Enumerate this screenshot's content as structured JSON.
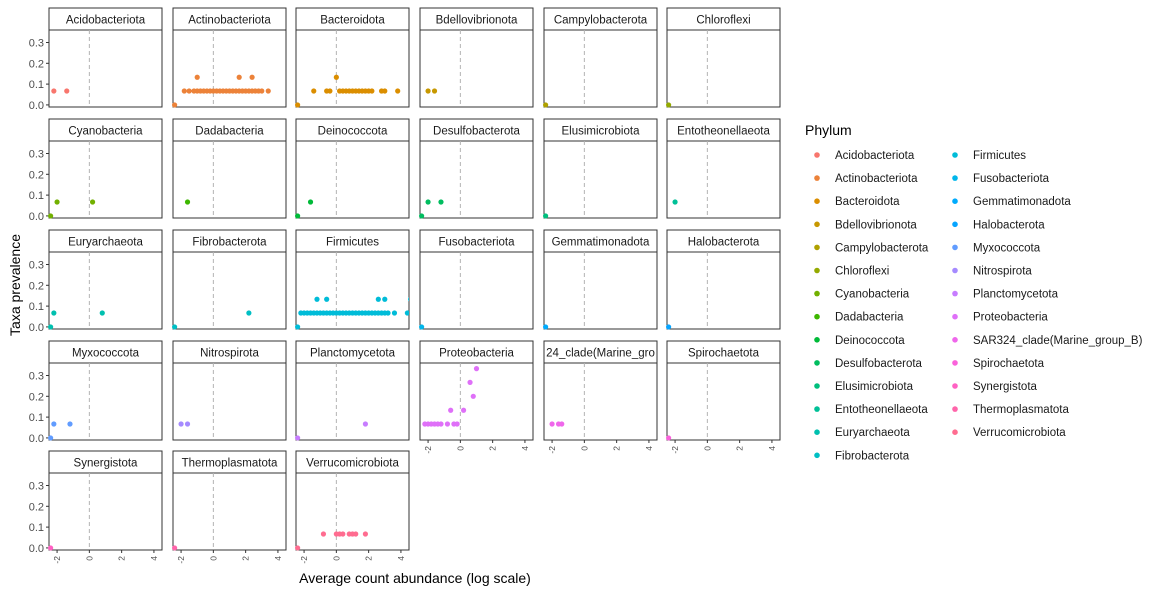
{
  "chart_data": {
    "type": "scatter",
    "xlabel": "Average count abundance (log scale)",
    "ylabel": "Taxa prevalence",
    "xlim": [
      -2.5,
      4.5
    ],
    "ylim": [
      -0.01,
      0.36
    ],
    "x_ticks": [
      -2,
      0,
      2,
      4
    ],
    "y_ticks": [
      0.0,
      0.1,
      0.2,
      0.3
    ],
    "x_tick_labels": [
      "-2",
      "0",
      "2",
      "4"
    ],
    "y_tick_labels": [
      "0.0",
      "0.1",
      "0.2",
      "0.3"
    ],
    "reference_line_x": 0,
    "grid": false,
    "facet_columns": 6,
    "legend": {
      "title": "Phylum",
      "position": "right",
      "columns": 2
    },
    "panel_clip_labels": {
      "SAR324_clade(Marine_group_B)": "24_clade(Marine_gro"
    },
    "series": [
      {
        "name": "Acidobacteriota",
        "color": "#F8766D",
        "x": [
          -2.2,
          -1.4
        ],
        "y": [
          0.067,
          0.067
        ]
      },
      {
        "name": "Actinobacteriota",
        "color": "#EC8239",
        "x": [
          -2.4,
          -1.8,
          -1.5,
          -1.2,
          -1.0,
          -0.8,
          -0.6,
          -0.4,
          -0.2,
          0.0,
          0.2,
          0.4,
          0.6,
          0.8,
          1.0,
          1.2,
          1.4,
          1.6,
          1.8,
          2.0,
          2.2,
          2.4,
          2.6,
          2.8,
          3.0,
          3.4,
          -1.0,
          1.6,
          2.4
        ],
        "y": [
          0.0,
          0.067,
          0.067,
          0.067,
          0.067,
          0.067,
          0.067,
          0.067,
          0.067,
          0.067,
          0.067,
          0.067,
          0.067,
          0.067,
          0.067,
          0.067,
          0.067,
          0.067,
          0.067,
          0.067,
          0.067,
          0.067,
          0.067,
          0.067,
          0.067,
          0.067,
          0.133,
          0.133,
          0.133
        ]
      },
      {
        "name": "Bacteroidota",
        "color": "#DB8E00",
        "x": [
          -2.4,
          -1.4,
          -0.6,
          -0.4,
          0.2,
          0.4,
          0.6,
          0.8,
          1.0,
          1.2,
          1.4,
          1.6,
          1.8,
          2.0,
          2.2,
          2.8,
          3.0,
          3.8,
          0.0
        ],
        "y": [
          0.0,
          0.067,
          0.067,
          0.067,
          0.067,
          0.067,
          0.067,
          0.067,
          0.067,
          0.067,
          0.067,
          0.067,
          0.067,
          0.067,
          0.067,
          0.067,
          0.067,
          0.067,
          0.133
        ]
      },
      {
        "name": "Bdellovibrionota",
        "color": "#C79800",
        "x": [
          -2.0,
          -1.6
        ],
        "y": [
          0.067,
          0.067
        ]
      },
      {
        "name": "Campylobacterota",
        "color": "#AFA100",
        "x": [
          -2.4
        ],
        "y": [
          0.0
        ]
      },
      {
        "name": "Chloroflexi",
        "color": "#94AA00",
        "x": [
          -2.4
        ],
        "y": [
          0.0
        ]
      },
      {
        "name": "Cyanobacteria",
        "color": "#72B000",
        "x": [
          -2.4,
          -2.0,
          0.2
        ],
        "y": [
          0.0,
          0.067,
          0.067
        ]
      },
      {
        "name": "Dadabacteria",
        "color": "#3DB700",
        "x": [
          -1.6
        ],
        "y": [
          0.067
        ]
      },
      {
        "name": "Deinococcota",
        "color": "#00BA38",
        "x": [
          -2.4,
          -1.6
        ],
        "y": [
          0.0,
          0.067
        ]
      },
      {
        "name": "Desulfobacterota",
        "color": "#00BD5F",
        "x": [
          -2.4,
          -2.0,
          -1.2
        ],
        "y": [
          0.0,
          0.067,
          0.067
        ]
      },
      {
        "name": "Elusimicrobiota",
        "color": "#00BF7D",
        "x": [
          -2.4
        ],
        "y": [
          0.0
        ]
      },
      {
        "name": "Entotheonellaeota",
        "color": "#00C097",
        "x": [
          -2.0
        ],
        "y": [
          0.067
        ]
      },
      {
        "name": "Euryarchaeota",
        "color": "#00C0AF",
        "x": [
          -2.4,
          -2.2,
          0.8
        ],
        "y": [
          0.0,
          0.067,
          0.067
        ]
      },
      {
        "name": "Fibrobacterota",
        "color": "#00BFC4",
        "x": [
          -2.4,
          2.2
        ],
        "y": [
          0.0,
          0.067
        ]
      },
      {
        "name": "Firmicutes",
        "color": "#00BCD8",
        "x": [
          -2.4,
          -2.2,
          -2.0,
          -1.8,
          -1.6,
          -1.4,
          -1.2,
          -1.0,
          -0.8,
          -0.6,
          -0.4,
          -0.2,
          0.0,
          0.2,
          0.4,
          0.6,
          0.8,
          1.0,
          1.2,
          1.4,
          1.6,
          1.8,
          2.0,
          2.2,
          2.4,
          2.6,
          2.8,
          3.0,
          3.2,
          3.6,
          4.4,
          -1.2,
          -0.6,
          2.6,
          3.0,
          4.6
        ],
        "y": [
          0.0,
          0.067,
          0.067,
          0.067,
          0.067,
          0.067,
          0.067,
          0.067,
          0.067,
          0.067,
          0.067,
          0.067,
          0.067,
          0.067,
          0.067,
          0.067,
          0.067,
          0.067,
          0.067,
          0.067,
          0.067,
          0.067,
          0.067,
          0.067,
          0.067,
          0.067,
          0.067,
          0.067,
          0.067,
          0.067,
          0.067,
          0.133,
          0.133,
          0.133,
          0.133,
          0.133
        ]
      },
      {
        "name": "Fusobacteriota",
        "color": "#00B6EB",
        "x": [
          -2.4
        ],
        "y": [
          0.0
        ]
      },
      {
        "name": "Gemmatimonadota",
        "color": "#00ABFD",
        "x": [
          -2.4
        ],
        "y": [
          0.0
        ]
      },
      {
        "name": "Halobacterota",
        "color": "#06A4FF",
        "x": [
          -2.4
        ],
        "y": [
          0.0
        ]
      },
      {
        "name": "Myxococcota",
        "color": "#619CFF",
        "x": [
          -2.4,
          -2.2,
          -1.2
        ],
        "y": [
          0.0,
          0.067,
          0.067
        ]
      },
      {
        "name": "Nitrospirota",
        "color": "#A58AFF",
        "x": [
          -2.0,
          -1.6
        ],
        "y": [
          0.067,
          0.067
        ]
      },
      {
        "name": "Planctomycetota",
        "color": "#C77CFF",
        "x": [
          -2.4,
          1.8
        ],
        "y": [
          0.0,
          0.067
        ]
      },
      {
        "name": "Proteobacteria",
        "color": "#DF70F8",
        "x": [
          -2.2,
          -2.0,
          -1.8,
          -1.6,
          -1.4,
          -1.2,
          -0.8,
          -0.4,
          -0.2,
          -0.6,
          0.2,
          0.8,
          0.6,
          1.0
        ],
        "y": [
          0.067,
          0.067,
          0.067,
          0.067,
          0.067,
          0.067,
          0.067,
          0.067,
          0.067,
          0.133,
          0.133,
          0.2,
          0.267,
          0.333
        ]
      },
      {
        "name": "SAR324_clade(Marine_group_B)",
        "color": "#EF67EB",
        "x": [
          -2.0,
          -1.6,
          -1.4
        ],
        "y": [
          0.067,
          0.067,
          0.067
        ]
      },
      {
        "name": "Spirochaetota",
        "color": "#FA62DB",
        "x": [
          -2.4
        ],
        "y": [
          0.0
        ]
      },
      {
        "name": "Synergistota",
        "color": "#FF61C3",
        "x": [
          -2.4
        ],
        "y": [
          0.0
        ]
      },
      {
        "name": "Thermoplasmatota",
        "color": "#FF65AA",
        "x": [
          -2.4
        ],
        "y": [
          0.0
        ]
      },
      {
        "name": "Verrucomicrobiota",
        "color": "#FF6C90",
        "x": [
          -2.4,
          -0.8,
          0.0,
          0.2,
          0.4,
          0.8,
          1.0,
          1.2,
          1.8
        ],
        "y": [
          0.0,
          0.067,
          0.067,
          0.067,
          0.067,
          0.067,
          0.067,
          0.067,
          0.067
        ]
      }
    ]
  }
}
